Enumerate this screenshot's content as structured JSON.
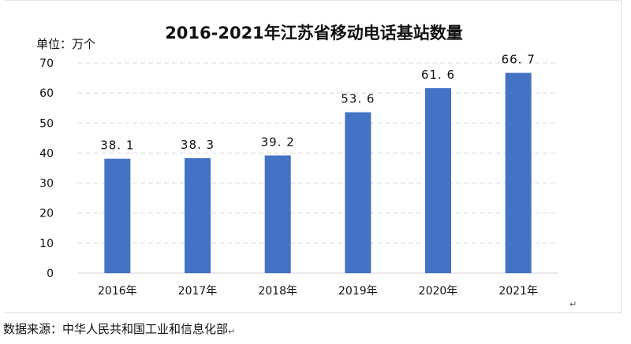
{
  "chart_data": {
    "type": "bar",
    "title": "2016-2021年江苏省移动电话基站数量",
    "unit_label": "单位：万个",
    "categories": [
      "2016年",
      "2017年",
      "2018年",
      "2019年",
      "2020年",
      "2021年"
    ],
    "values": [
      38.1,
      38.3,
      39.2,
      53.6,
      61.6,
      66.7
    ],
    "value_labels": [
      "38. 1",
      "38. 3",
      "39. 2",
      "53. 6",
      "61. 6",
      "66. 7"
    ],
    "y_ticks": [
      "0",
      "10",
      "20",
      "30",
      "40",
      "50",
      "60",
      "70"
    ],
    "ylim": [
      0,
      70
    ],
    "grid": true,
    "bar_color": "#4472c4",
    "grid_color": "#d9d9d9"
  },
  "source_note": "数据来源：中华人民共和国工业和信息化部",
  "paragraph_mark": "↵"
}
